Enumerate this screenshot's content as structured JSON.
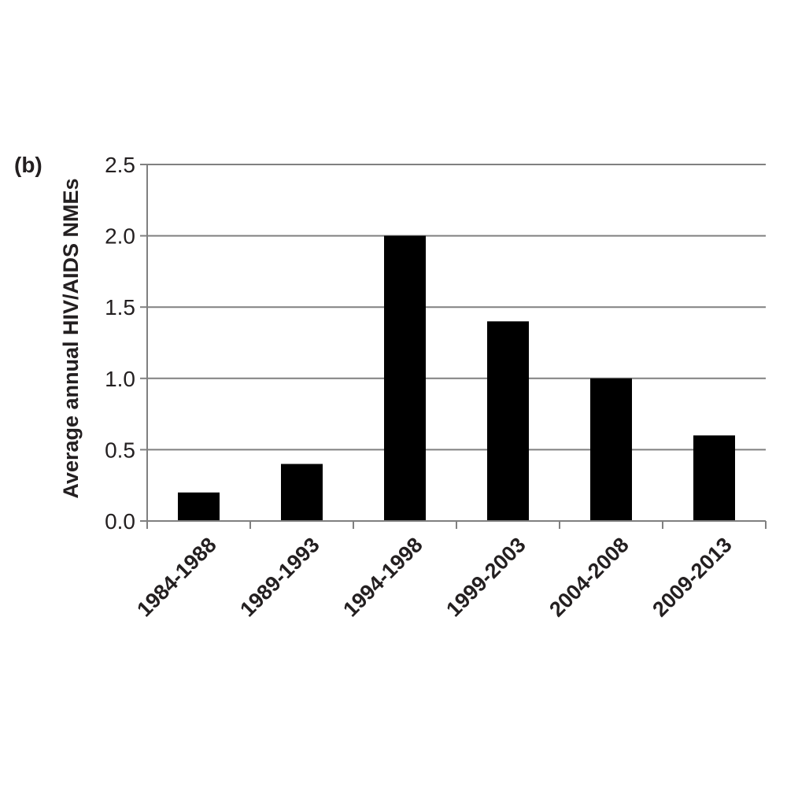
{
  "panel_label": "(b)",
  "chart_data": {
    "type": "bar",
    "categories": [
      "1984-1988",
      "1989-1993",
      "1994-1998",
      "1999-2003",
      "2004-2008",
      "2009-2013"
    ],
    "values": [
      0.2,
      0.4,
      2.0,
      1.4,
      1.0,
      0.6
    ],
    "title": "",
    "xlabel": "",
    "ylabel": "Average annual HIV/AIDS NMEs",
    "ylim": [
      0,
      2.5
    ],
    "yticks": [
      "0.0",
      "0.5",
      "1.0",
      "1.5",
      "2.0",
      "2.5"
    ],
    "grid": true,
    "legend": "none",
    "bar_color": "#000000",
    "grid_color": "#808080"
  }
}
